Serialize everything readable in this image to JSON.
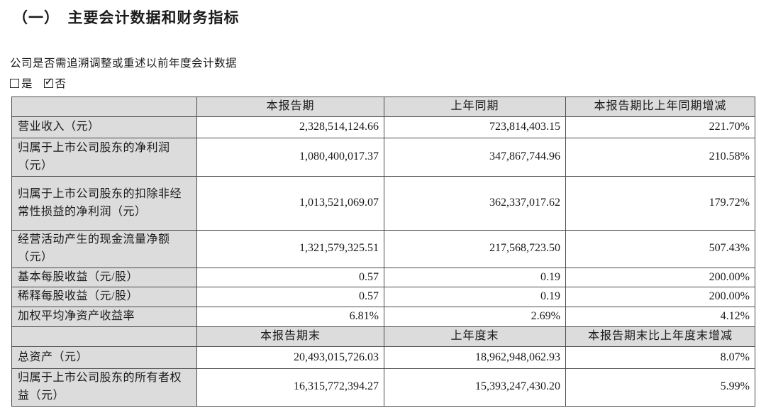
{
  "section": {
    "title": "（一）　主要会计数据和财务指标",
    "question": "公司是否需追溯调整或重述以前年度会计数据",
    "option_yes": "是",
    "option_no": "否",
    "option_yes_checked": false,
    "option_no_checked": true,
    "check_glyph": "✓"
  },
  "colors": {
    "table_header_bg": "#dcdcdc",
    "table_border": "#4a4a4a",
    "text": "#1a1a1a"
  },
  "table": {
    "header1": {
      "col1": "",
      "col2": "本报告期",
      "col3": "上年同期",
      "col4": "本报告期比上年同期增减"
    },
    "rows1": [
      {
        "label": "营业收入（元）",
        "current": "2,328,514,124.66",
        "prior": "723,814,403.15",
        "change": "221.70%"
      },
      {
        "label": "归属于上市公司股东的净利润（元）",
        "current": "1,080,400,017.37",
        "prior": "347,867,744.96",
        "change": "210.58%"
      },
      {
        "label": "归属于上市公司股东的扣除非经常性损益的净利润（元）",
        "current": "1,013,521,069.07",
        "prior": "362,337,017.62",
        "change": "179.72%"
      },
      {
        "label": "经营活动产生的现金流量净额（元）",
        "current": "1,321,579,325.51",
        "prior": "217,568,723.50",
        "change": "507.43%"
      },
      {
        "label": "基本每股收益（元/股）",
        "current": "0.57",
        "prior": "0.19",
        "change": "200.00%"
      },
      {
        "label": "稀释每股收益（元/股）",
        "current": "0.57",
        "prior": "0.19",
        "change": "200.00%"
      },
      {
        "label": "加权平均净资产收益率",
        "current": "6.81%",
        "prior": "2.69%",
        "change": "4.12%"
      }
    ],
    "header2": {
      "col1": "",
      "col2": "本报告期末",
      "col3": "上年度末",
      "col4": "本报告期末比上年度末增减"
    },
    "rows2": [
      {
        "label": "总资产（元）",
        "current": "20,493,015,726.03",
        "prior": "18,962,948,062.93",
        "change": "8.07%"
      },
      {
        "label": "归属于上市公司股东的所有者权益（元）",
        "current": "16,315,772,394.27",
        "prior": "15,393,247,430.20",
        "change": "5.99%"
      }
    ]
  }
}
